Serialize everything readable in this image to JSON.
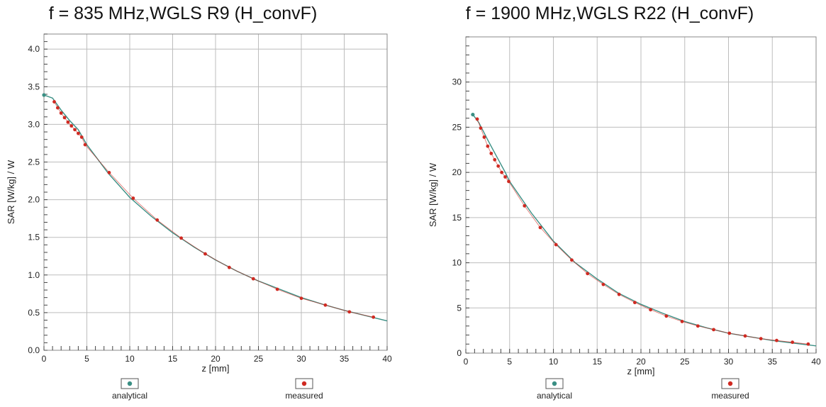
{
  "chart_data": [
    {
      "type": "scatter",
      "title": "f = 835 MHz,WGLS R9 (H_convF)",
      "xlabel": "z [mm]",
      "ylabel": "SAR [W/kg] / W",
      "xlim": [
        0,
        40
      ],
      "ylim": [
        0,
        4.2
      ],
      "xticks": [
        0,
        5,
        10,
        15,
        20,
        25,
        30,
        35,
        40
      ],
      "yticks": [
        0.0,
        0.5,
        1.0,
        1.5,
        2.0,
        2.5,
        3.0,
        3.5,
        4.0
      ],
      "ytick_labels": [
        "0.0",
        "0.5",
        "1.0",
        "1.5",
        "2.0",
        "2.5",
        "3.0",
        "3.5",
        "4.0"
      ],
      "grid": true,
      "legend_position": "bottom",
      "series": [
        {
          "name": "analytical",
          "color": "#3a8f84",
          "style": "line",
          "x": [
            0,
            1,
            2,
            3,
            4,
            5,
            7.5,
            10,
            12.5,
            15,
            17.5,
            20,
            22.5,
            25,
            27.5,
            30,
            32.5,
            35,
            37.5,
            40
          ],
          "y": [
            3.39,
            3.35,
            3.19,
            3.05,
            2.93,
            2.73,
            2.35,
            2.03,
            1.78,
            1.56,
            1.37,
            1.2,
            1.05,
            0.92,
            0.81,
            0.7,
            0.61,
            0.53,
            0.46,
            0.39
          ]
        },
        {
          "name": "measured",
          "color": "#d02a22",
          "style": "points",
          "x": [
            1.2,
            1.6,
            2.0,
            2.4,
            2.8,
            3.2,
            3.6,
            4.0,
            4.4,
            4.8,
            7.6,
            10.4,
            13.2,
            16.0,
            18.8,
            21.6,
            24.4,
            27.2,
            30.0,
            32.8,
            35.6,
            38.4
          ],
          "y": [
            3.3,
            3.22,
            3.15,
            3.09,
            3.03,
            2.98,
            2.93,
            2.88,
            2.83,
            2.73,
            2.36,
            2.02,
            1.73,
            1.49,
            1.28,
            1.1,
            0.95,
            0.81,
            0.69,
            0.6,
            0.51,
            0.44
          ]
        }
      ]
    },
    {
      "type": "scatter",
      "title": "f = 1900 MHz,WGLS R22 (H_convF)",
      "xlabel": "z [mm]",
      "ylabel": "SAR [W/kg] / W",
      "xlim": [
        0,
        40
      ],
      "ylim": [
        0,
        35
      ],
      "xticks": [
        0,
        5,
        10,
        15,
        20,
        25,
        30,
        35,
        40
      ],
      "yticks": [
        0,
        5,
        10,
        15,
        20,
        25,
        30
      ],
      "ytick_labels": [
        "0",
        "5",
        "10",
        "15",
        "20",
        "25",
        "30"
      ],
      "grid": true,
      "legend_position": "bottom",
      "series": [
        {
          "name": "analytical",
          "color": "#3a8f84",
          "style": "line",
          "x": [
            0.8,
            1.5,
            2.5,
            3.5,
            4.5,
            5,
            7.5,
            10,
            12.5,
            15,
            17.5,
            20,
            22.5,
            25,
            27.5,
            30,
            32.5,
            35,
            37.5,
            40
          ],
          "y": [
            26.4,
            25.5,
            23.6,
            21.8,
            20.0,
            19.0,
            15.5,
            12.4,
            10.0,
            8.2,
            6.6,
            5.4,
            4.4,
            3.5,
            2.8,
            2.2,
            1.8,
            1.4,
            1.1,
            0.8
          ]
        },
        {
          "name": "measured",
          "color": "#d02a22",
          "style": "points",
          "x": [
            1.3,
            1.7,
            2.1,
            2.5,
            2.9,
            3.3,
            3.7,
            4.1,
            4.5,
            4.9,
            6.7,
            8.5,
            10.3,
            12.1,
            13.9,
            15.7,
            17.5,
            19.3,
            21.1,
            22.9,
            24.7,
            26.5,
            28.3,
            30.1,
            31.9,
            33.7,
            35.5,
            37.3,
            39.1
          ],
          "y": [
            25.9,
            24.9,
            23.9,
            22.9,
            22.1,
            21.4,
            20.7,
            20.0,
            19.5,
            19.0,
            16.3,
            13.9,
            12.0,
            10.3,
            8.8,
            7.6,
            6.5,
            5.6,
            4.8,
            4.1,
            3.5,
            3.0,
            2.6,
            2.2,
            1.9,
            1.6,
            1.4,
            1.2,
            1.0
          ]
        }
      ]
    }
  ]
}
